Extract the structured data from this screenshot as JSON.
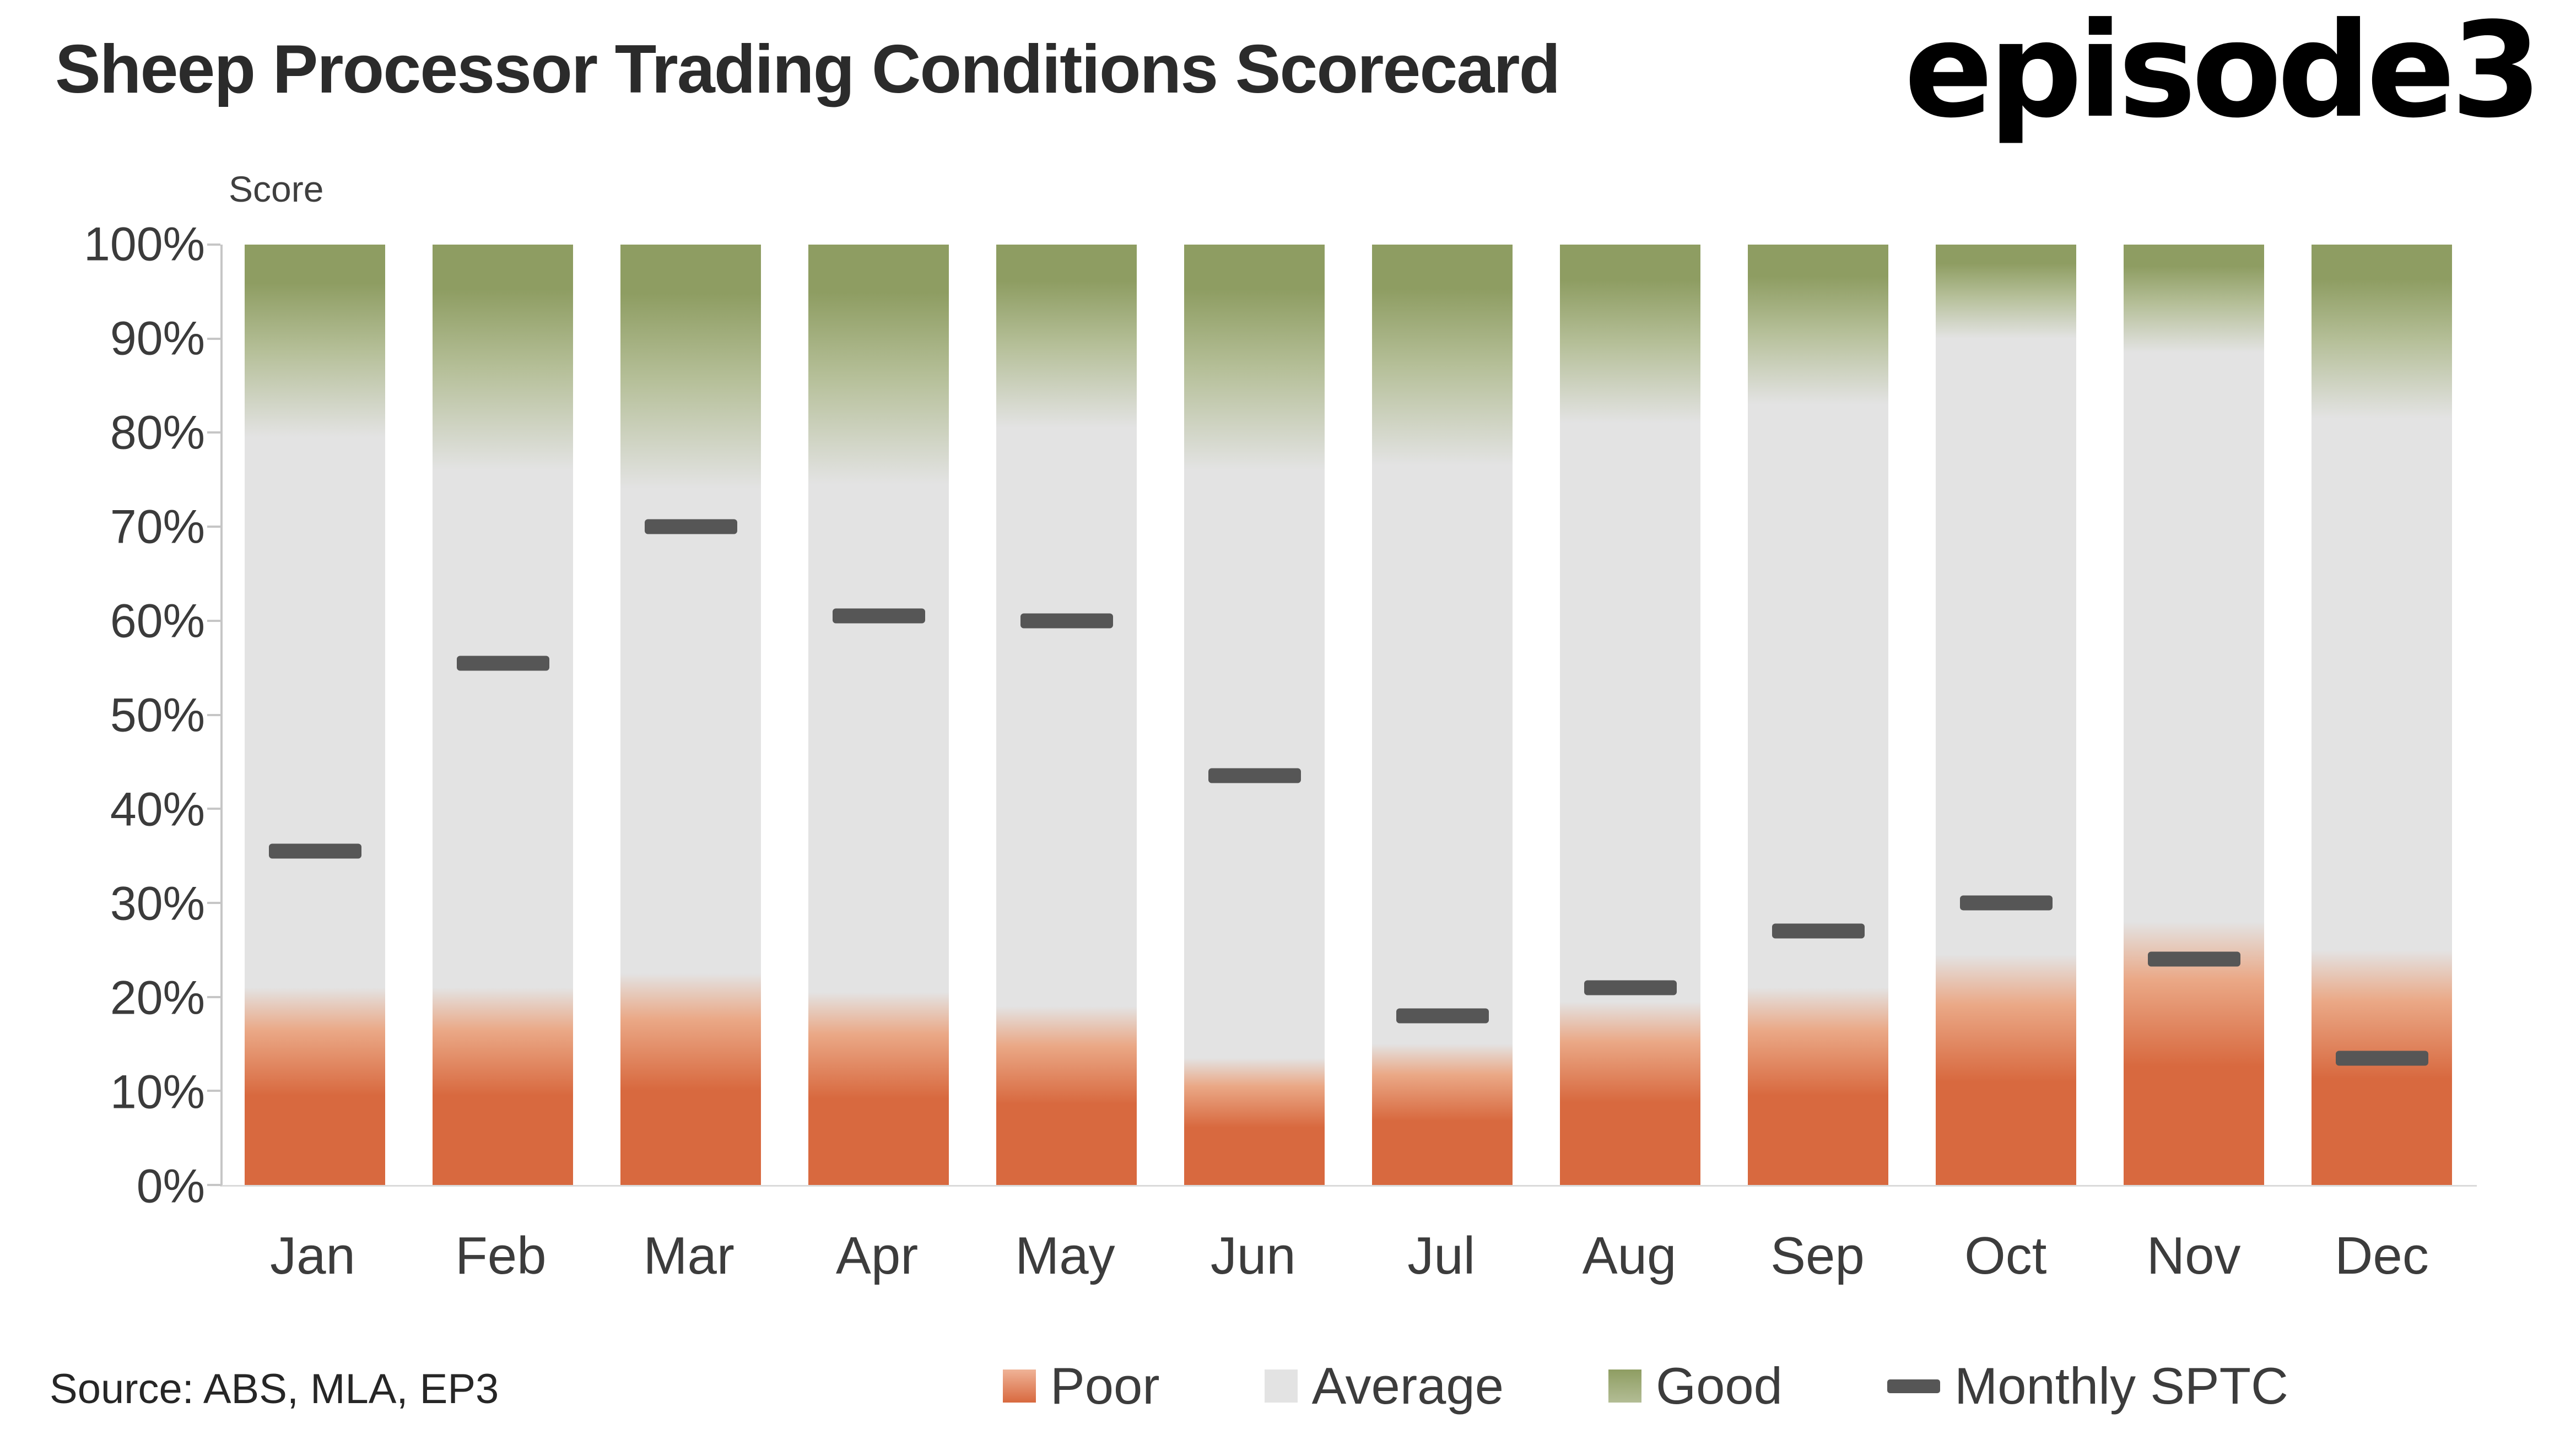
{
  "header": {
    "title": "Sheep Processor Trading Conditions Scorecard",
    "logo": "episode3"
  },
  "footer": {
    "source": "Source: ABS, MLA, EP3"
  },
  "chart_data": {
    "type": "bar",
    "stacked": true,
    "title": "Sheep Processor Trading Conditions Scorecard",
    "ylabel": "Score",
    "ylim": [
      0,
      100
    ],
    "grid": false,
    "legend_position": "bottom",
    "yticks": [
      "0%",
      "10%",
      "20%",
      "30%",
      "40%",
      "50%",
      "60%",
      "70%",
      "80%",
      "90%",
      "100%"
    ],
    "categories": [
      "Jan",
      "Feb",
      "Mar",
      "Apr",
      "May",
      "Jun",
      "Jul",
      "Aug",
      "Sep",
      "Oct",
      "Nov",
      "Dec"
    ],
    "series": [
      {
        "name": "Poor",
        "values": [
          21,
          21,
          22.5,
          20.5,
          19,
          13.5,
          15,
          19.5,
          21,
          24.5,
          28,
          25
        ]
      },
      {
        "name": "Average",
        "values": [
          58.5,
          55,
          51.5,
          54,
          61.5,
          62.5,
          61.5,
          61.5,
          62,
          65.5,
          60.5,
          56.5
        ]
      },
      {
        "name": "Good",
        "values": [
          20.5,
          24,
          26,
          25.5,
          19.5,
          24,
          23.5,
          19,
          17,
          10,
          11.5,
          18.5
        ]
      }
    ],
    "markers": {
      "name": "Monthly SPTC",
      "color": "#565656",
      "values": [
        35.5,
        55.5,
        70,
        60.5,
        60,
        43.5,
        18,
        21,
        27,
        30,
        24,
        13.5
      ]
    },
    "legend": [
      {
        "label": "Poor"
      },
      {
        "label": "Average"
      },
      {
        "label": "Good"
      },
      {
        "label": "Monthly SPTC"
      }
    ],
    "colors": {
      "poor": "#d8693f",
      "poor_light": "#eaa886",
      "average": "#e3e3e3",
      "good_light": "#b5bf98",
      "good": "#8e9d62",
      "marker": "#565656"
    }
  }
}
